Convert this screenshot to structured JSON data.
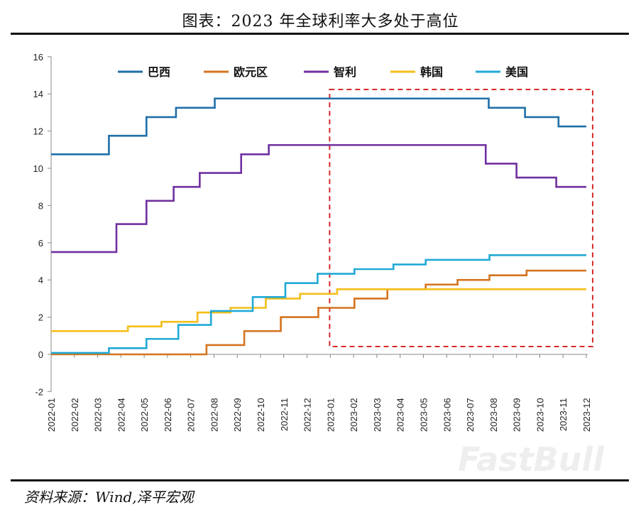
{
  "title": "图表：2023 年全球利率大多处于高位",
  "source": "资料来源：Wind,泽平宏观",
  "watermark": "FastBull",
  "chart_data": {
    "type": "line",
    "step": true,
    "title": "图表：2023 年全球利率大多处于高位",
    "xlabel": "",
    "ylabel": "",
    "ylim": [
      -2,
      16
    ],
    "yticks": [
      -2,
      0,
      2,
      4,
      6,
      8,
      10,
      12,
      14,
      16
    ],
    "xlim": [
      "2022-01",
      "2023-12"
    ],
    "xticks": [
      "2022-01",
      "2022-02",
      "2022-03",
      "2022-04",
      "2022-05",
      "2022-06",
      "2022-07",
      "2022-08",
      "2022-09",
      "2022-10",
      "2022-11",
      "2022-12",
      "2023-01",
      "2023-02",
      "2023-03",
      "2023-04",
      "2023-05",
      "2023-06",
      "2023-07",
      "2023-08",
      "2023-09",
      "2023-10",
      "2023-11",
      "2023-12"
    ],
    "grid": false,
    "legend_position": "top",
    "highlight_box": {
      "from": "2023-01",
      "to": "2023-12",
      "color": "#d42a2a",
      "style": "dashed"
    },
    "series": [
      {
        "name": "巴西",
        "color": "#1f6fa8",
        "steps": [
          [
            "2022-01-01",
            10.75
          ],
          [
            "2022-03-16",
            11.75
          ],
          [
            "2022-05-04",
            12.75
          ],
          [
            "2022-06-12",
            13.25
          ],
          [
            "2022-08-02",
            13.75
          ],
          [
            "2023-07-26",
            13.25
          ],
          [
            "2023-09-12",
            12.75
          ],
          [
            "2023-10-26",
            12.25
          ]
        ]
      },
      {
        "name": "欧元区",
        "color": "#d4731f",
        "steps": [
          [
            "2022-01-01",
            0
          ],
          [
            "2022-07-22",
            0.5
          ],
          [
            "2022-09-10",
            1.25
          ],
          [
            "2022-10-28",
            2.0
          ],
          [
            "2022-12-16",
            2.5
          ],
          [
            "2023-02-02",
            3.0
          ],
          [
            "2023-03-15",
            3.5
          ],
          [
            "2023-05-04",
            3.75
          ],
          [
            "2023-06-15",
            4.0
          ],
          [
            "2023-07-27",
            4.25
          ],
          [
            "2023-09-14",
            4.5
          ]
        ]
      },
      {
        "name": "智利",
        "color": "#7030a0",
        "steps": [
          [
            "2022-01-01",
            5.5
          ],
          [
            "2022-03-26",
            7.0
          ],
          [
            "2022-05-04",
            8.25
          ],
          [
            "2022-06-09",
            9.0
          ],
          [
            "2022-07-13",
            9.75
          ],
          [
            "2022-09-06",
            10.75
          ],
          [
            "2022-10-12",
            11.25
          ],
          [
            "2023-07-22",
            10.25
          ],
          [
            "2023-09-01",
            9.5
          ],
          [
            "2023-10-23",
            9.0
          ]
        ]
      },
      {
        "name": "韩国",
        "color": "#f5be19",
        "steps": [
          [
            "2022-01-01",
            1.25
          ],
          [
            "2022-04-10",
            1.5
          ],
          [
            "2022-05-24",
            1.75
          ],
          [
            "2022-07-10",
            2.25
          ],
          [
            "2022-08-23",
            2.5
          ],
          [
            "2022-10-08",
            3.0
          ],
          [
            "2022-11-22",
            3.25
          ],
          [
            "2023-01-10",
            3.5
          ]
        ]
      },
      {
        "name": "美国",
        "color": "#21a9d6",
        "steps": [
          [
            "2022-01-01",
            0.08
          ],
          [
            "2022-03-16",
            0.33
          ],
          [
            "2022-05-04",
            0.83
          ],
          [
            "2022-06-15",
            1.58
          ],
          [
            "2022-07-28",
            2.33
          ],
          [
            "2022-09-21",
            3.08
          ],
          [
            "2022-11-03",
            3.83
          ],
          [
            "2022-12-15",
            4.33
          ],
          [
            "2023-02-02",
            4.58
          ],
          [
            "2023-03-23",
            4.83
          ],
          [
            "2023-05-04",
            5.08
          ],
          [
            "2023-07-27",
            5.33
          ]
        ]
      }
    ]
  }
}
